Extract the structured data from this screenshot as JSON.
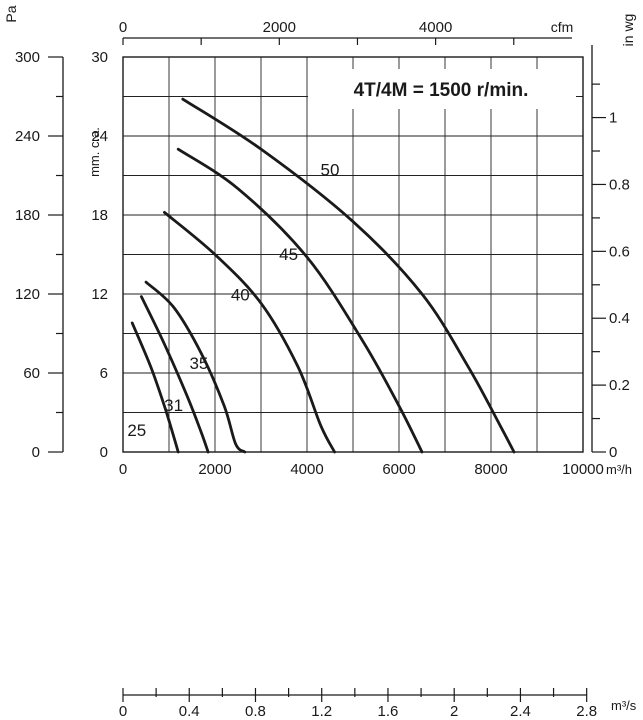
{
  "chart_data": {
    "type": "line",
    "title": "4T/4M = 1500 r/min.",
    "x_axes": {
      "primary": {
        "unit": "m³/h",
        "range": [
          0,
          10000
        ],
        "ticks": [
          "0",
          "2000",
          "4000",
          "6000",
          "8000",
          "10000"
        ]
      },
      "cfm": {
        "unit": "cfm",
        "ticks": [
          "0",
          "2000",
          "4000"
        ]
      },
      "m3s": {
        "unit": "m³/s",
        "ticks": [
          "0",
          "0.4",
          "0.8",
          "1.2",
          "1.6",
          "2",
          "2.4",
          "2.8"
        ]
      }
    },
    "y_axes": {
      "primary": {
        "unit": "mm. c.a.",
        "range": [
          0,
          30
        ],
        "ticks": [
          "0",
          "6",
          "12",
          "18",
          "24",
          "30"
        ]
      },
      "pa": {
        "unit": "Pa",
        "ticks": [
          "0",
          "60",
          "120",
          "180",
          "240",
          "300"
        ]
      },
      "inwg": {
        "unit": "in wg",
        "ticks": [
          "0",
          "0.2",
          "0.4",
          "0.6",
          "0.8",
          "1"
        ]
      }
    },
    "grid": true,
    "series": [
      {
        "name": "25",
        "points": [
          [
            200,
            9.8
          ],
          [
            600,
            6.5
          ],
          [
            900,
            3.5
          ],
          [
            1100,
            1.2
          ],
          [
            1200,
            0
          ]
        ]
      },
      {
        "name": "31",
        "points": [
          [
            400,
            11.8
          ],
          [
            900,
            8.2
          ],
          [
            1400,
            4.2
          ],
          [
            1700,
            1.5
          ],
          [
            1850,
            0
          ]
        ]
      },
      {
        "name": "35",
        "points": [
          [
            500,
            12.9
          ],
          [
            1100,
            11.0
          ],
          [
            1700,
            7.5
          ],
          [
            2200,
            3.5
          ],
          [
            2450,
            0.6
          ],
          [
            2650,
            0
          ]
        ]
      },
      {
        "name": "40",
        "points": [
          [
            900,
            18.2
          ],
          [
            2000,
            15.0
          ],
          [
            3000,
            11.3
          ],
          [
            3800,
            6.5
          ],
          [
            4300,
            2.0
          ],
          [
            4600,
            0
          ]
        ]
      },
      {
        "name": "45",
        "points": [
          [
            1200,
            23.0
          ],
          [
            2500,
            20.0
          ],
          [
            4000,
            14.8
          ],
          [
            5200,
            8.5
          ],
          [
            6000,
            3.5
          ],
          [
            6500,
            0
          ]
        ]
      },
      {
        "name": "50",
        "points": [
          [
            1300,
            26.8
          ],
          [
            3000,
            23.0
          ],
          [
            5000,
            17.5
          ],
          [
            6500,
            12.0
          ],
          [
            7500,
            6.5
          ],
          [
            8200,
            2.0
          ],
          [
            8500,
            0
          ]
        ]
      }
    ]
  }
}
